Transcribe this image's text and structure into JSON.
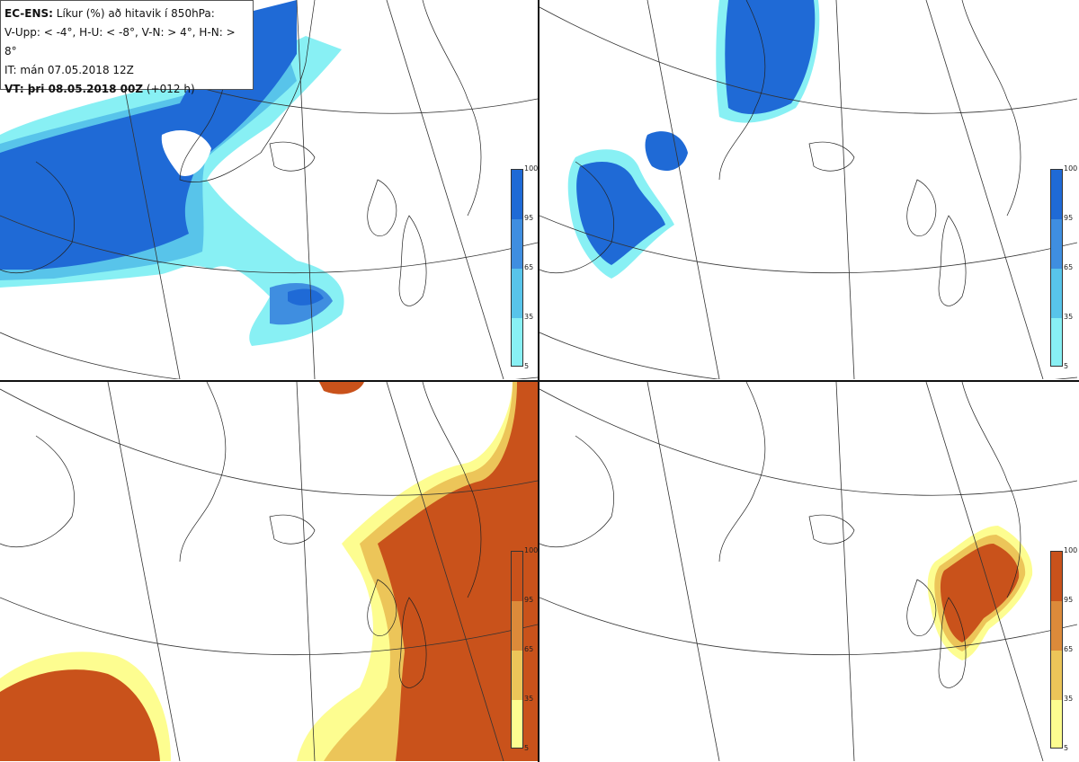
{
  "header": {
    "model_label": "EC-ENS:",
    "title": "Líkur (%) að hitavik í 850hPa:",
    "thresholds": "V-Upp: < -4°, H-U: < -8°, V-N: > 4°, H-N: > 8°",
    "init_time": "IT: mán 07.05.2018 12Z",
    "valid_label": "VT: þri 08.05.2018 00Z",
    "lead_time": "(+012 h)"
  },
  "colorbars": {
    "ticks": [
      "100",
      "95",
      "65",
      "35",
      "5"
    ],
    "cold_colors": [
      "#1f6ad6",
      "#3f8ee0",
      "#58c4ea",
      "#88f0f4"
    ],
    "warm_colors": [
      "#c9521b",
      "#dc8a3a",
      "#ecc559",
      "#fdfd90"
    ]
  },
  "panels": [
    {
      "id": "top-left",
      "threshold": "V-Upp: < -4°"
    },
    {
      "id": "top-right",
      "threshold": "H-U: < -8°"
    },
    {
      "id": "bottom-left",
      "threshold": "V-N: > 4°"
    },
    {
      "id": "bottom-right",
      "threshold": "H-N: > 8°"
    }
  ]
}
